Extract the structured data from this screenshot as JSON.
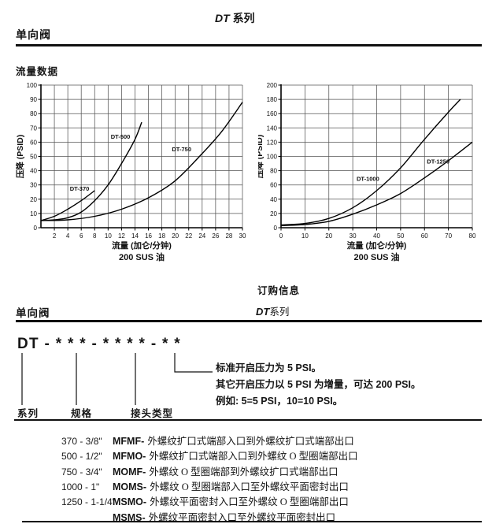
{
  "header": {
    "series_en": "DT",
    "series_cn": "系列",
    "product": "单向阀"
  },
  "flow_section": {
    "title": "流量数据"
  },
  "ordering": {
    "title": "订购信息",
    "product": "单向阀",
    "series_en": "DT",
    "series_cn": "系列",
    "model_code": "DT - * * * - * * * * - * *",
    "callout_labels": {
      "series": "系列",
      "spec": "规格",
      "port_type": "接头类型"
    },
    "pressure_note": [
      "标准开启压力为 5 PSI。",
      "其它开启压力以 5 PSI 为增量，可达 200 PSI。",
      "例如: 5=5 PSI，10=10 PSI。"
    ],
    "spec_table": {
      "rows": [
        {
          "size": "370 - 3/8\"",
          "code": "MFMF-",
          "desc": "外螺纹扩口式端部入口到外螺纹扩口式端部出口"
        },
        {
          "size": "500 - 1/2\"",
          "code": "MFMO-",
          "desc": "外螺纹扩口式端部入口到外螺纹 O 型圈端部出口"
        },
        {
          "size": "750 - 3/4\"",
          "code": "MOMF-",
          "desc": "外螺纹 O 型圈端部到外螺纹扩口式端部出口"
        },
        {
          "size": "1000 - 1\"",
          "code": "MOMS-",
          "desc": "外螺纹 O 型圈端部入口至外螺纹平面密封出口"
        },
        {
          "size": "1250 - 1-1/4\"",
          "code": "MSMO-",
          "desc": "外螺纹平面密封入口至外螺纹 O 型圈端部出口"
        },
        {
          "size": "",
          "code": "MSMS-",
          "desc": "外螺纹平面密封入口至外螺纹平面密封出口"
        }
      ]
    }
  },
  "chart_data": [
    {
      "type": "line",
      "title": "",
      "xlabel": "流量 (加仑/分钟)",
      "sublabel": "200 SUS 油",
      "ylabel": "压降 (PSID)",
      "xlim": [
        0,
        30
      ],
      "ylim": [
        0,
        100
      ],
      "xticks": [
        2,
        4,
        6,
        8,
        10,
        12,
        14,
        16,
        18,
        20,
        22,
        24,
        26,
        28,
        30
      ],
      "yticks": [
        0,
        10,
        20,
        30,
        40,
        50,
        60,
        70,
        80,
        90,
        100
      ],
      "grid": true,
      "series": [
        {
          "name": "DT-370",
          "points": [
            [
              0,
              5
            ],
            [
              2,
              8
            ],
            [
              4,
              13
            ],
            [
              6,
              19
            ],
            [
              8,
              26
            ]
          ],
          "label_at": [
            4.3,
            26
          ]
        },
        {
          "name": "DT-500",
          "points": [
            [
              0,
              5
            ],
            [
              2,
              5.5
            ],
            [
              4,
              7
            ],
            [
              6,
              11
            ],
            [
              8,
              19
            ],
            [
              10,
              30
            ],
            [
              12,
              45
            ],
            [
              14,
              62
            ],
            [
              15,
              74
            ]
          ],
          "label_at": [
            10.4,
            62.5
          ]
        },
        {
          "name": "DT-750",
          "points": [
            [
              0,
              5
            ],
            [
              4,
              5.5
            ],
            [
              8,
              8
            ],
            [
              12,
              13
            ],
            [
              16,
              21
            ],
            [
              20,
              33
            ],
            [
              24,
              52
            ],
            [
              27,
              68
            ],
            [
              30,
              88
            ]
          ],
          "label_at": [
            19.5,
            53.5
          ]
        }
      ]
    },
    {
      "type": "line",
      "title": "",
      "xlabel": "流量 (加仑/分钟)",
      "sublabel": "200 SUS 油",
      "ylabel": "压降 (PSID)",
      "xlim": [
        0,
        80
      ],
      "ylim": [
        0,
        200
      ],
      "xticks": [
        0,
        10,
        20,
        30,
        40,
        50,
        60,
        70,
        80
      ],
      "yticks": [
        0,
        20,
        40,
        60,
        80,
        100,
        120,
        140,
        160,
        180,
        200
      ],
      "grid": true,
      "series": [
        {
          "name": "DT-1000",
          "points": [
            [
              0,
              4
            ],
            [
              10,
              6
            ],
            [
              20,
              13
            ],
            [
              30,
              28
            ],
            [
              40,
              52
            ],
            [
              50,
              84
            ],
            [
              60,
              124
            ],
            [
              70,
              162
            ],
            [
              75,
              180
            ]
          ],
          "label_at": [
            31.6,
            66
          ]
        },
        {
          "name": "DT-1250",
          "points": [
            [
              0,
              3
            ],
            [
              10,
              4.5
            ],
            [
              20,
              9
            ],
            [
              30,
              19
            ],
            [
              40,
              32
            ],
            [
              50,
              48
            ],
            [
              60,
              70
            ],
            [
              70,
              94
            ],
            [
              80,
              120
            ]
          ],
          "label_at": [
            61,
            90
          ]
        }
      ]
    }
  ]
}
